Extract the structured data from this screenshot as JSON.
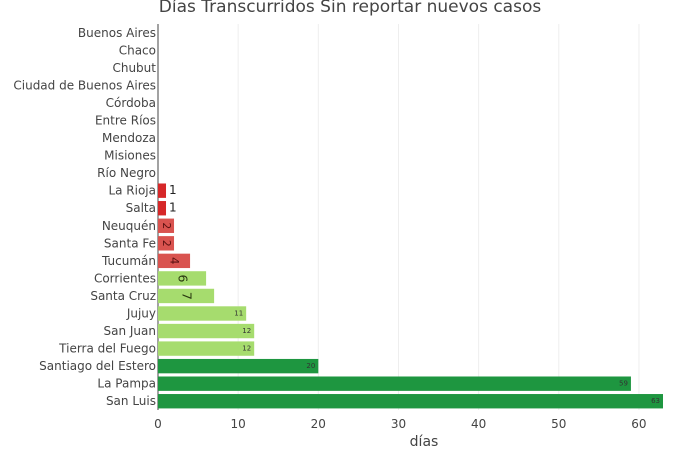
{
  "chart_data": {
    "type": "bar",
    "orientation": "horizontal",
    "title": "Días Transcurridos Sin reportar nuevos casos",
    "xlabel": "días",
    "ylabel": "",
    "xlim": [
      0,
      63
    ],
    "xticks": [
      0,
      10,
      20,
      30,
      40,
      50,
      60
    ],
    "grid": true,
    "categories": [
      "Buenos Aires",
      "Chaco",
      "Chubut",
      "Ciudad de Buenos Aires",
      "Córdoba",
      "Entre Ríos",
      "Mendoza",
      "Misiones",
      "Río Negro",
      "La Rioja",
      "Salta",
      "Neuquén",
      "Santa Fe",
      "Tucumán",
      "Corrientes",
      "Santa Cruz",
      "Jujuy",
      "San Juan",
      "Tierra del Fuego",
      "Santiago del Estero",
      "La Pampa",
      "San Luis"
    ],
    "values": [
      0,
      0,
      0,
      0,
      0,
      0,
      0,
      0,
      0,
      1,
      1,
      2,
      2,
      4,
      6,
      7,
      11,
      12,
      12,
      20,
      59,
      63
    ],
    "colors": [
      "#d62728",
      "#d62728",
      "#d62728",
      "#d62728",
      "#d62728",
      "#d62728",
      "#d62728",
      "#d62728",
      "#d62728",
      "#d62728",
      "#d62728",
      "#d9534f",
      "#d9534f",
      "#d9534f",
      "#a6dc6e",
      "#a6dc6e",
      "#a6dc6e",
      "#a6dc6e",
      "#a6dc6e",
      "#1e9640",
      "#1e9640",
      "#1e9640"
    ]
  }
}
